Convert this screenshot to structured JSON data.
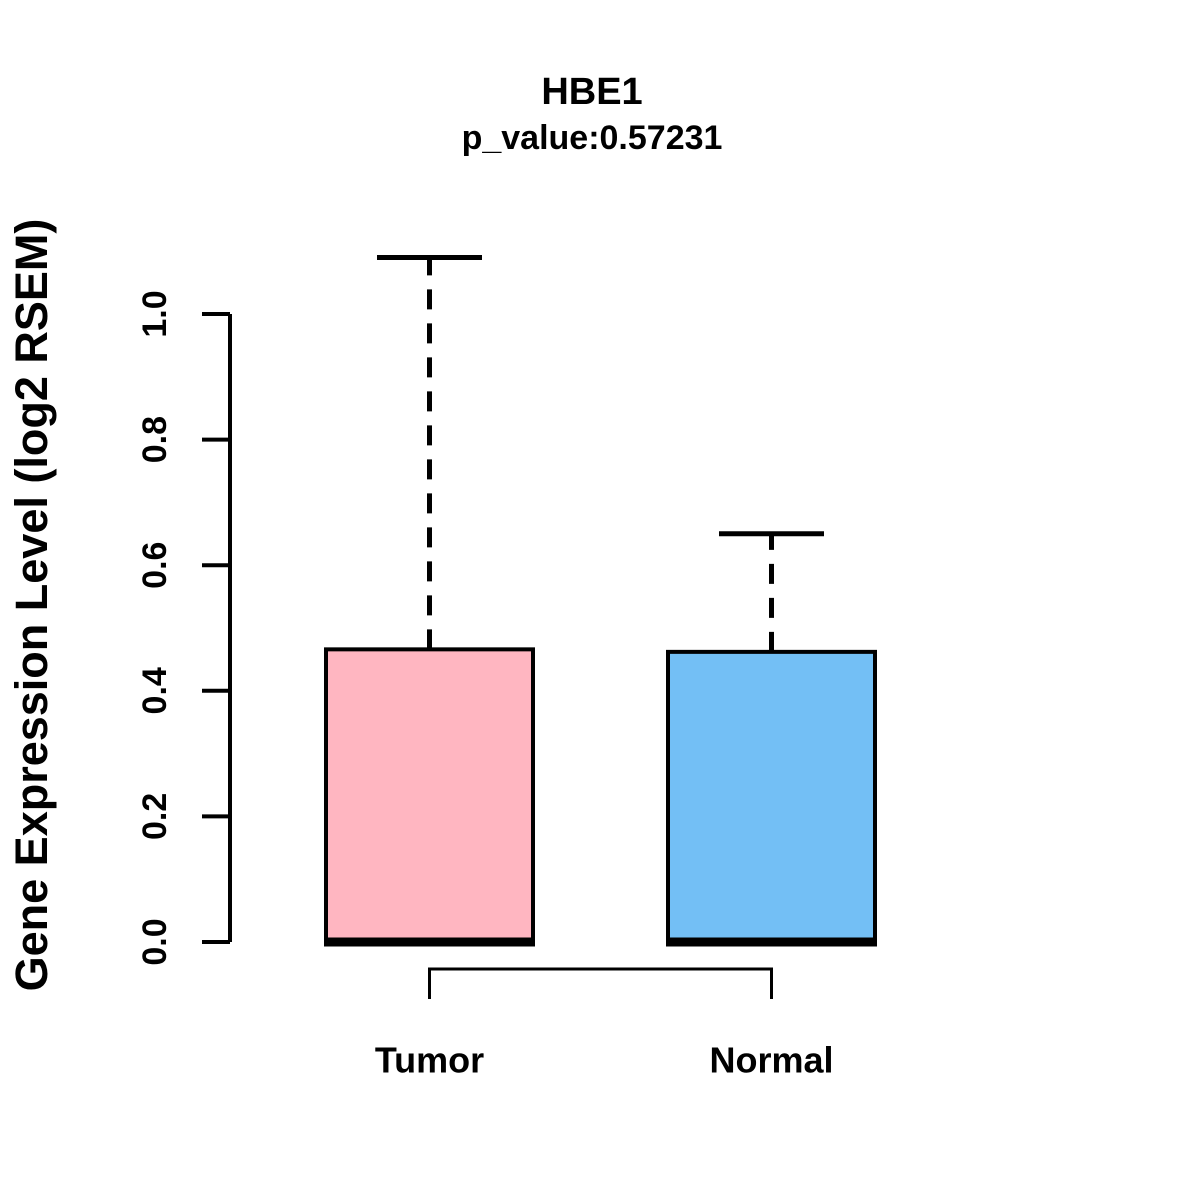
{
  "chart_data": {
    "type": "boxplot",
    "title": "HBE1",
    "subtitle": "p_value:0.57231",
    "ylabel": "Gene Expression Level (log2 RSEM)",
    "xlabel": "",
    "ylim": [
      0.0,
      1.0
    ],
    "yticks": [
      "0.0",
      "0.2",
      "0.4",
      "0.6",
      "0.8",
      "1.0"
    ],
    "grid": false,
    "legend": "none",
    "axis_color": "#000000",
    "groups": [
      {
        "label": "Tumor",
        "fill_color": "#FFB6C1",
        "border_color": "#000000",
        "whisker_high": 1.09,
        "q3": 0.466,
        "median": 0.0,
        "q1": 0.0,
        "whisker_low": 0.0
      },
      {
        "label": "Normal",
        "fill_color": "#73BFF5",
        "border_color": "#000000",
        "whisker_high": 0.65,
        "q3": 0.462,
        "median": 0.0,
        "q1": 0.0,
        "whisker_low": 0.0
      }
    ],
    "comparison_bracket": {
      "from": "Tumor",
      "to": "Normal"
    }
  }
}
